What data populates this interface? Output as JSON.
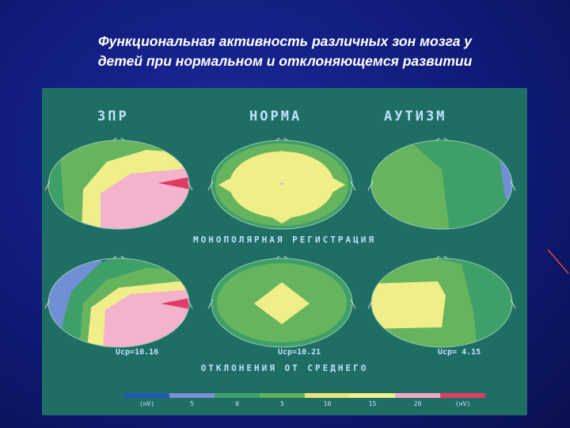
{
  "title": {
    "line1": "Функциональная активность различных зон мозга у",
    "line2": "детей при нормальном и отклоняющемся развитии"
  },
  "figure": {
    "headers": [
      "ЗПР",
      "НОРМА",
      "АУТИЗМ"
    ],
    "middle_label": "МОНОПОЛЯРНАЯ РЕГИСТРАЦИЯ",
    "bottom_label": "ОТКЛОНЕНИЯ ОТ СРЕДНЕГО",
    "ucp": [
      "Ucp=10.16",
      "Ucp=10.21",
      "Ucp= 4.15"
    ],
    "scale_labels": [
      "(нV)",
      "5",
      "0",
      "5",
      "10",
      "15",
      "20",
      "(нV)"
    ],
    "scale_colors": [
      "#1e5ab4",
      "#7a8fd8",
      "#3f9f68",
      "#5db25a",
      "#e8e67a",
      "#f2f08a",
      "#f0a9c4",
      "#e03c64"
    ],
    "zone_colors": {
      "background": "#1f6e63",
      "blue": "#6f8fd6",
      "dark_green": "#3f9f68",
      "green": "#66b55e",
      "yellow": "#f0ee88",
      "pink": "#f3b3cc",
      "red": "#e03c64"
    }
  }
}
